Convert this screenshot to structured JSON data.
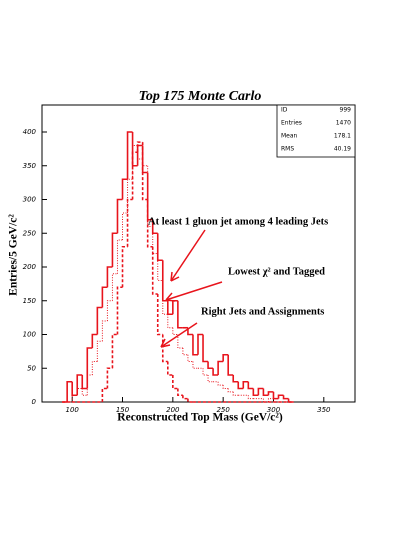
{
  "chart_data": {
    "type": "histogram",
    "title": "Top 175 Monte Carlo",
    "x_label": "Reconstructed Top Mass (GeV/c²)",
    "y_label": "Entries/5 GeV/c²",
    "color": "#e8141c",
    "xlim": [
      70,
      381
    ],
    "ylim": [
      0,
      440
    ],
    "xticks": [
      100,
      150,
      200,
      250,
      300,
      350
    ],
    "yticks": [
      0,
      50,
      100,
      150,
      200,
      250,
      300,
      350,
      400
    ],
    "bins": [
      90,
      95,
      100,
      105,
      110,
      115,
      120,
      125,
      130,
      135,
      140,
      145,
      150,
      155,
      160,
      165,
      170,
      175,
      180,
      185,
      190,
      195,
      200,
      205,
      210,
      215,
      220,
      225,
      230,
      235,
      240,
      245,
      250,
      255,
      260,
      265,
      270,
      275,
      280,
      285,
      290,
      295,
      300,
      305,
      310,
      315,
      320
    ],
    "series": [
      {
        "style": "solid",
        "values": [
          0,
          30,
          10,
          40,
          20,
          80,
          100,
          140,
          170,
          200,
          250,
          300,
          330,
          400,
          350,
          380,
          340,
          270,
          250,
          210,
          150,
          130,
          150,
          110,
          110,
          100,
          70,
          100,
          60,
          50,
          40,
          60,
          70,
          40,
          30,
          20,
          30,
          20,
          10,
          20,
          10,
          15,
          5,
          10,
          5,
          0
        ]
      },
      {
        "style": "dotted",
        "values": [
          0,
          0,
          10,
          20,
          10,
          40,
          60,
          90,
          120,
          150,
          190,
          240,
          280,
          330,
          380,
          360,
          350,
          260,
          220,
          180,
          130,
          110,
          100,
          80,
          70,
          60,
          50,
          50,
          40,
          30,
          30,
          25,
          20,
          15,
          10,
          10,
          10,
          5,
          5,
          5,
          0,
          5,
          0,
          0,
          0,
          0
        ]
      },
      {
        "style": "dashed",
        "values": [
          0,
          0,
          0,
          0,
          0,
          0,
          0,
          0,
          20,
          50,
          100,
          170,
          230,
          300,
          370,
          385,
          300,
          230,
          160,
          100,
          60,
          40,
          20,
          10,
          5,
          0,
          0,
          0,
          0,
          0,
          0,
          0,
          0,
          0,
          0,
          0,
          0,
          0,
          0,
          0,
          0,
          0,
          0,
          0,
          0,
          0
        ]
      }
    ],
    "stats": [
      {
        "label": "ID",
        "value": 999
      },
      {
        "label": "Entries",
        "value": 1470
      },
      {
        "label": "Mean",
        "value": 178.1
      },
      {
        "label": "RMS",
        "value": 40.19
      }
    ],
    "annotations": [
      "At least 1 gluon jet among 4 leading Jets",
      "Lowest χ² and Tagged",
      "Right Jets and Assignments"
    ]
  }
}
